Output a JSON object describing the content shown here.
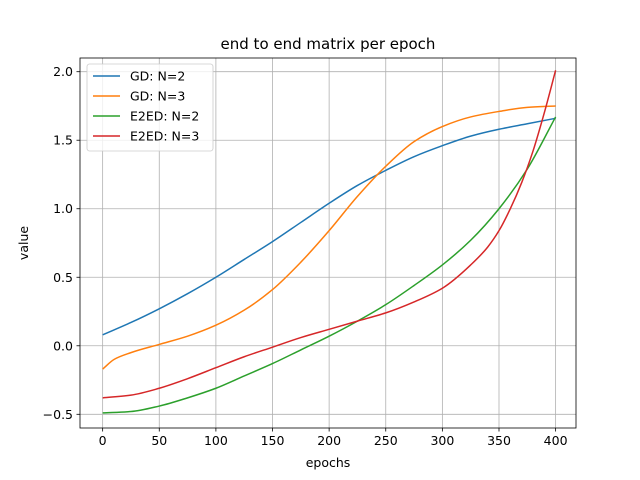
{
  "chart_data": {
    "type": "line",
    "title": "end to end matrix per epoch",
    "xlabel": "epochs",
    "ylabel": "value",
    "xlim": [
      -20,
      418
    ],
    "ylim": [
      -0.6,
      2.1
    ],
    "xticks": [
      0,
      50,
      100,
      150,
      200,
      250,
      300,
      350,
      400
    ],
    "yticks": [
      -0.5,
      0.0,
      0.5,
      1.0,
      1.5,
      2.0
    ],
    "xtick_labels": [
      "0",
      "50",
      "100",
      "150",
      "200",
      "250",
      "300",
      "350",
      "400"
    ],
    "ytick_labels": [
      "−0.5",
      "0.0",
      "0.5",
      "1.0",
      "1.5",
      "2.0"
    ],
    "grid": true,
    "legend_position": "top-left",
    "series": [
      {
        "name": "GD: N=2",
        "color": "#1f77b4",
        "x": [
          0,
          25,
          50,
          75,
          100,
          125,
          150,
          175,
          200,
          225,
          250,
          275,
          300,
          325,
          350,
          375,
          400
        ],
        "y": [
          0.08,
          0.17,
          0.27,
          0.38,
          0.5,
          0.63,
          0.76,
          0.9,
          1.04,
          1.17,
          1.28,
          1.38,
          1.46,
          1.53,
          1.58,
          1.62,
          1.66
        ]
      },
      {
        "name": "GD: N=3",
        "color": "#ff7f0e",
        "x": [
          0,
          10,
          25,
          50,
          75,
          100,
          125,
          150,
          175,
          200,
          225,
          250,
          275,
          300,
          325,
          350,
          375,
          400
        ],
        "y": [
          -0.17,
          -0.1,
          -0.05,
          0.01,
          0.07,
          0.15,
          0.26,
          0.41,
          0.61,
          0.84,
          1.09,
          1.31,
          1.49,
          1.6,
          1.67,
          1.71,
          1.74,
          1.75
        ]
      },
      {
        "name": "E2ED: N=2",
        "color": "#2ca02c",
        "x": [
          0,
          25,
          50,
          75,
          100,
          125,
          150,
          175,
          200,
          225,
          250,
          275,
          300,
          325,
          350,
          375,
          400
        ],
        "y": [
          -0.49,
          -0.48,
          -0.44,
          -0.38,
          -0.31,
          -0.22,
          -0.13,
          -0.03,
          0.07,
          0.18,
          0.3,
          0.44,
          0.59,
          0.77,
          1.0,
          1.29,
          1.67
        ]
      },
      {
        "name": "E2ED: N=3",
        "color": "#d62728",
        "x": [
          0,
          25,
          50,
          75,
          100,
          125,
          150,
          175,
          200,
          225,
          250,
          275,
          300,
          325,
          340,
          350,
          360,
          370,
          380,
          390,
          400
        ],
        "y": [
          -0.38,
          -0.36,
          -0.31,
          -0.24,
          -0.16,
          -0.08,
          -0.01,
          0.06,
          0.12,
          0.18,
          0.24,
          0.32,
          0.42,
          0.59,
          0.72,
          0.84,
          1.0,
          1.19,
          1.42,
          1.7,
          2.01
        ]
      }
    ]
  }
}
